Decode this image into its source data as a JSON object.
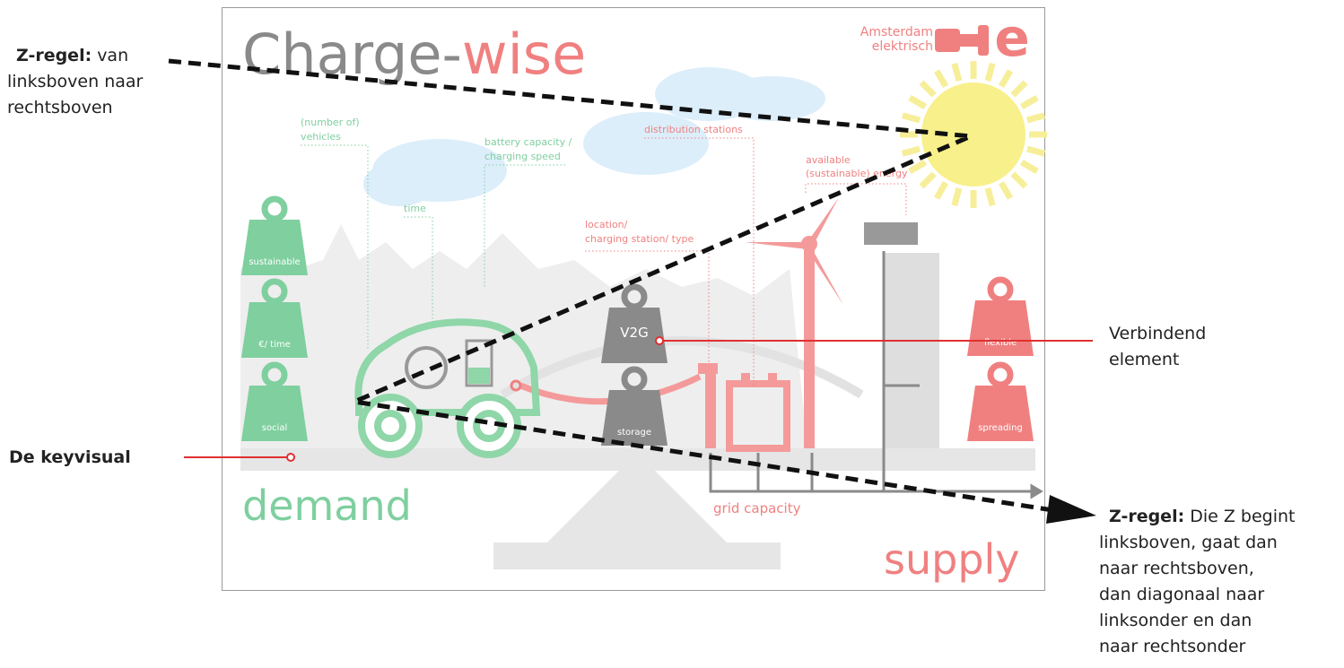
{
  "infographic": {
    "title": {
      "part1": "Charge-",
      "part2": "wise"
    },
    "logo": {
      "line1": "Amsterdam",
      "line2": "elektrisch"
    },
    "labels": {
      "vehicles": [
        "(number of)",
        "vehicles"
      ],
      "battery": [
        "battery capacity /",
        "charging speed"
      ],
      "time": [
        "time"
      ],
      "distribution": [
        "distribution stations"
      ],
      "energy": [
        "available",
        "(sustainable) energy"
      ],
      "location": [
        "location/",
        "charging station/ type"
      ],
      "grid": "grid capacity"
    },
    "weights": {
      "sustainable": "sustainable",
      "time": "€/ time",
      "social": "social",
      "v2g": "V2G",
      "storage": "storage",
      "flexible": "flexible",
      "spreading": "spreading"
    },
    "demand": "demand",
    "supply": "supply"
  },
  "annotations": {
    "z_rule_top": {
      "label": "Z-regel:",
      "lines": [
        "van",
        "linksboven naar",
        "rechtsboven"
      ]
    },
    "keyvisual": "De keyvisual",
    "connecting": [
      "Verbindend",
      "element"
    ],
    "z_rule_bottom": {
      "label": "Z-regel:",
      "lines": [
        "Die Z begint",
        "linksboven, gaat dan",
        "naar rechtsboven,",
        "dan diagonaal naar",
        "linksonder en dan",
        "naar rechtsonder"
      ]
    }
  }
}
